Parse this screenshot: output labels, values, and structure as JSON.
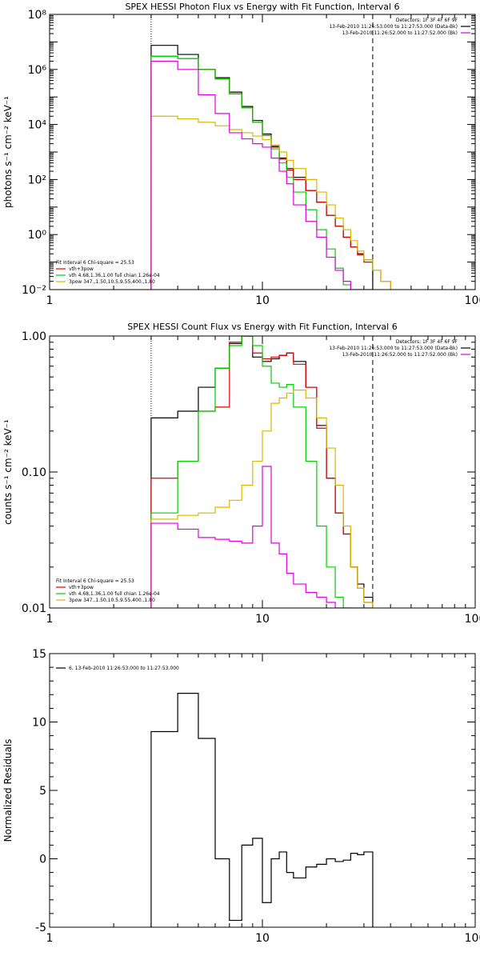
{
  "chart_data": [
    {
      "type": "line",
      "title": "SPEX HESSI Photon Flux vs Energy with Fit Function, Interval 6",
      "xlabel": "",
      "ylabel": "photons s⁻¹ cm⁻² keV⁻¹",
      "xscale": "log",
      "yscale": "log",
      "xlim": [
        1,
        100
      ],
      "ylim": [
        0.01,
        100000000
      ],
      "x_ticks": [
        {
          "value": 1,
          "label": "1"
        },
        {
          "value": 10,
          "label": "10"
        },
        {
          "value": 100,
          "label": "100"
        }
      ],
      "y_ticks": [
        {
          "value": 0.01,
          "label": "10⁻²"
        },
        {
          "value": 1,
          "label": "10⁰"
        },
        {
          "value": 100,
          "label": "10²"
        },
        {
          "value": 10000,
          "label": "10⁴"
        },
        {
          "value": 1000000,
          "label": "10⁶"
        },
        {
          "value": 100000000,
          "label": "10⁸"
        }
      ],
      "vlines": [
        {
          "x": 3,
          "style": "dotted"
        },
        {
          "x": 33,
          "style": "dashed"
        }
      ],
      "legend_top_right": [
        {
          "text": "Detectors: 1F 3F 4F 6F 9F",
          "color": ""
        },
        {
          "text": "13-Feb-2010 11:26:53.000 to 11:27:53.000 (Data-Bk)",
          "color": "#000000"
        },
        {
          "text": "13-Feb-2010 11:26:52.000 to 11:27:52.000 (Bk)",
          "color": "#e000e0"
        }
      ],
      "legend_bottom_left": [
        {
          "text": "Fit Interval 6   Chi-square = 25.53",
          "color": ""
        },
        {
          "text": "vth+3pow",
          "color": "#e00000"
        },
        {
          "text": "vth 4.68,1.36,1.00  full chian 1.26e-04",
          "color": "#00d000"
        },
        {
          "text": "3pow 347.,1.50,10.5,9.55,400.,1.80",
          "color": "#d8b800"
        }
      ],
      "series": [
        {
          "name": "13-Feb-2010 11:26:53.000 to 11:27:53.000 (Data-Bk)",
          "color": "#000000",
          "edges": [
            3,
            4,
            5,
            6,
            7,
            8,
            9,
            10,
            11,
            12,
            13,
            14,
            16,
            18,
            20,
            22,
            24,
            26,
            28,
            30,
            33
          ],
          "values": [
            7500000,
            3500000,
            1000000,
            500000,
            150000,
            45000,
            14000,
            4500,
            1600,
            600,
            250,
            120,
            40,
            15,
            5,
            2,
            0.8,
            0.35,
            0.2,
            0.12
          ]
        },
        {
          "name": "vth+3pow",
          "color": "#e00000",
          "edges": [
            3,
            4,
            5,
            6,
            7,
            8,
            9,
            10,
            11,
            12,
            13,
            14,
            16,
            18,
            20,
            22,
            24,
            26,
            28,
            30,
            33,
            36,
            40
          ],
          "values": [
            3000000,
            2500000,
            1000000,
            450000,
            130000,
            40000,
            12000,
            4000,
            1500,
            550,
            220,
            100,
            40,
            15,
            5,
            2,
            0.8,
            0.35,
            0.18,
            0.1,
            0.05,
            0.02
          ]
        },
        {
          "name": "vth 4.68,1.36,1.00  full chian 1.26e-04",
          "color": "#00d000",
          "edges": [
            3,
            4,
            5,
            6,
            7,
            8,
            9,
            10,
            11,
            12,
            13,
            14,
            16,
            18,
            20,
            22,
            24,
            26
          ],
          "values": [
            3000000,
            2500000,
            1000000,
            450000,
            130000,
            40000,
            12000,
            4000,
            1300,
            400,
            120,
            35,
            8,
            1.5,
            0.3,
            0.06,
            0.015
          ]
        },
        {
          "name": "3pow 347.,1.50,10.5,9.55,400.,1.80",
          "color": "#d8b800",
          "edges": [
            3,
            4,
            5,
            6,
            7,
            8,
            9,
            10,
            11,
            12,
            13,
            14,
            16,
            18,
            20,
            22,
            24,
            26,
            28,
            30,
            33,
            36,
            40
          ],
          "values": [
            20000,
            16000,
            12000,
            9000,
            6500,
            5000,
            3800,
            2800,
            1800,
            1000,
            500,
            250,
            100,
            35,
            12,
            4,
            1.5,
            0.6,
            0.25,
            0.12,
            0.05,
            0.02
          ]
        },
        {
          "name": "13-Feb-2010 11:26:52.000 to 11:27:52.000 (Bk)",
          "color": "#e000e0",
          "edges": [
            3,
            4,
            5,
            6,
            7,
            8,
            9,
            10,
            11,
            12,
            13,
            14,
            16,
            18,
            20,
            22,
            24,
            26,
            28,
            30,
            33
          ],
          "values": [
            2000000,
            1000000,
            120000,
            25000,
            5000,
            3000,
            2000,
            1500,
            600,
            200,
            70,
            12,
            3,
            0.8,
            0.15,
            0.05,
            0.02,
            0.01,
            0.01,
            0.01
          ]
        }
      ]
    },
    {
      "type": "line",
      "title": "SPEX HESSI Count Flux vs Energy with Fit Function, Interval 6",
      "xlabel": "",
      "ylabel": "counts s⁻¹ cm⁻² keV⁻¹",
      "xscale": "log",
      "yscale": "log",
      "xlim": [
        1,
        100
      ],
      "ylim": [
        0.01,
        1
      ],
      "x_ticks": [
        {
          "value": 1,
          "label": "1"
        },
        {
          "value": 10,
          "label": "10"
        },
        {
          "value": 100,
          "label": "100"
        }
      ],
      "y_ticks": [
        {
          "value": 0.01,
          "label": "0.01"
        },
        {
          "value": 0.1,
          "label": "0.10"
        },
        {
          "value": 1,
          "label": "1.00"
        }
      ],
      "vlines": [
        {
          "x": 3,
          "style": "dotted"
        },
        {
          "x": 33,
          "style": "dashed"
        }
      ],
      "legend_top_right": [
        {
          "text": "Detectors: 1F 3F 4F 6F 9F",
          "color": ""
        },
        {
          "text": "13-Feb-2010 11:26:53.000 to 11:27:53.000 (Data-Bk)",
          "color": "#000000"
        },
        {
          "text": "13-Feb-2010 11:26:52.000 to 11:27:52.000 (Bk)",
          "color": "#e000e0"
        }
      ],
      "legend_bottom_left": [
        {
          "text": "Fit Interval 6   Chi-square = 25.53",
          "color": ""
        },
        {
          "text": "vth+3pow",
          "color": "#e00000"
        },
        {
          "text": "vth 4.68,1.36,1.00  full chian 1.26e-04",
          "color": "#00d000"
        },
        {
          "text": "3pow 347.,1.50,10.5,9.55,400.,1.80",
          "color": "#d8b800"
        }
      ],
      "series": [
        {
          "name": "13-Feb-2010 11:26:53.000 to 11:27:53.000 (Data-Bk)",
          "color": "#000000",
          "edges": [
            3,
            4,
            5,
            6,
            7,
            8,
            9,
            10,
            11,
            12,
            13,
            14,
            16,
            18,
            20,
            22,
            24,
            26,
            28,
            30,
            33
          ],
          "values": [
            0.25,
            0.28,
            0.42,
            0.58,
            0.88,
            1.0,
            0.7,
            0.65,
            0.68,
            0.72,
            0.75,
            0.65,
            0.42,
            0.22,
            0.09,
            0.05,
            0.035,
            0.02,
            0.015,
            0.012
          ]
        },
        {
          "name": "vth+3pow",
          "color": "#e00000",
          "edges": [
            3,
            4,
            5,
            6,
            7,
            8,
            9,
            10,
            11,
            12,
            13,
            14,
            16,
            18,
            20,
            22,
            24,
            26,
            28,
            30,
            33
          ],
          "values": [
            0.09,
            0.12,
            0.28,
            0.3,
            0.9,
            1.0,
            0.75,
            0.68,
            0.7,
            0.72,
            0.75,
            0.62,
            0.42,
            0.21,
            0.09,
            0.05,
            0.035,
            0.02,
            0.014,
            0.011
          ]
        },
        {
          "name": "vth 4.68,1.36,1.00  full chian 1.26e-04",
          "color": "#00d000",
          "edges": [
            3,
            4,
            5,
            6,
            7,
            8,
            9,
            10,
            11,
            12,
            13,
            14,
            16,
            18,
            20,
            22,
            24,
            26
          ],
          "values": [
            0.05,
            0.12,
            0.28,
            0.58,
            0.85,
            1.0,
            0.85,
            0.6,
            0.45,
            0.42,
            0.44,
            0.3,
            0.12,
            0.04,
            0.02,
            0.012,
            0.01
          ]
        },
        {
          "name": "3pow 347.,1.50,10.5,9.55,400.,1.80",
          "color": "#d8b800",
          "edges": [
            3,
            4,
            5,
            6,
            7,
            8,
            9,
            10,
            11,
            12,
            13,
            14,
            16,
            18,
            20,
            22,
            24,
            26,
            28,
            30,
            33
          ],
          "values": [
            0.045,
            0.048,
            0.05,
            0.055,
            0.062,
            0.08,
            0.12,
            0.2,
            0.32,
            0.35,
            0.38,
            0.4,
            0.35,
            0.25,
            0.15,
            0.08,
            0.04,
            0.02,
            0.014,
            0.011
          ]
        },
        {
          "name": "13-Feb-2010 11:26:52.000 to 11:27:52.000 (Bk)",
          "color": "#e000e0",
          "edges": [
            3,
            4,
            5,
            6,
            7,
            8,
            9,
            10,
            11,
            12,
            13,
            14,
            16,
            18,
            20,
            22,
            24,
            26,
            28,
            30,
            33
          ],
          "values": [
            0.042,
            0.038,
            0.033,
            0.032,
            0.031,
            0.03,
            0.04,
            0.11,
            0.03,
            0.025,
            0.018,
            0.015,
            0.013,
            0.012,
            0.011,
            0.01,
            0.01,
            0.01,
            0.01,
            0.01
          ]
        }
      ]
    },
    {
      "type": "line",
      "title": "",
      "xlabel": "",
      "ylabel": "Normalized Residuals",
      "xscale": "log",
      "yscale": "linear",
      "xlim": [
        1,
        100
      ],
      "ylim": [
        -5,
        15
      ],
      "x_ticks": [
        {
          "value": 1,
          "label": "1"
        },
        {
          "value": 10,
          "label": "10"
        },
        {
          "value": 100,
          "label": "100"
        }
      ],
      "y_ticks": [
        {
          "value": -5,
          "label": "-5"
        },
        {
          "value": 0,
          "label": "0"
        },
        {
          "value": 5,
          "label": "5"
        },
        {
          "value": 10,
          "label": "10"
        },
        {
          "value": 15,
          "label": "15"
        }
      ],
      "vlines": [],
      "legend_top_left": [
        {
          "text": "6, 13-Feb-2010 11:26:53.000 to 11:27:53.000",
          "color": "#000000"
        }
      ],
      "series": [
        {
          "name": "6, 13-Feb-2010 11:26:53.000 to 11:27:53.000",
          "color": "#000000",
          "edges": [
            3,
            4,
            5,
            6,
            7,
            8,
            9,
            10,
            11,
            12,
            13,
            14,
            16,
            18,
            20,
            22,
            24,
            26,
            28,
            30,
            33
          ],
          "values": [
            9.3,
            12.1,
            8.8,
            0,
            -4.5,
            1,
            1.5,
            -3.2,
            0,
            0.5,
            -1,
            -1.4,
            -0.6,
            -0.4,
            0,
            -0.2,
            -0.1,
            0.4,
            0.3,
            0.5
          ]
        }
      ]
    }
  ]
}
